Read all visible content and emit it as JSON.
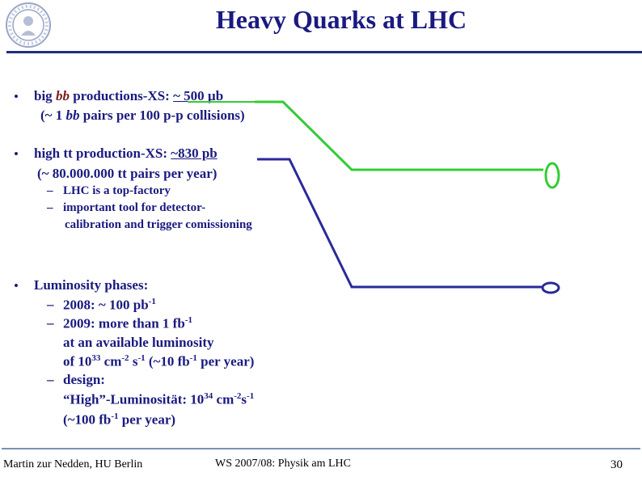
{
  "slide": {
    "title": "Heavy Quarks at LHC",
    "page_number": "30"
  },
  "bullets": {
    "b1_line1_prefix": "big ",
    "b1_line1_bb": "bb",
    "b1_line1_mid": " productions-XS: ",
    "b1_line1_value": "~ 500 µb",
    "b1_line2_prefix": "(~ 1 ",
    "b1_line2_bb": "bb",
    "b1_line2_rest": " pairs per 100 p-p collisions)",
    "b2_line1_prefix": "high ",
    "b2_line1_tt": "tt",
    "b2_line1_mid": " production-XS: ",
    "b2_line1_value": "~830 pb",
    "b2_line2": "(~ 80.000.000 tt pairs per year)",
    "b2_sub1": "LHC is a top-factory",
    "b2_sub2_line1": "important tool for detector-",
    "b2_sub2_line2": "calibration and trigger comissioning",
    "b3_head": "Luminosity phases:",
    "b3_sub1": "2008: ~ 100 pb",
    "b3_sub1_sup": "-1",
    "b3_sub2_line1": "2009: more than 1 fb",
    "b3_sub2_line1_sup": "-1",
    "b3_sub2_line2": "at an available luminosity",
    "b3_sub2_line3_a": "of 10",
    "b3_sub2_line3_a_sup": "33",
    "b3_sub2_line3_b": " cm",
    "b3_sub2_line3_b_sup": "-2",
    "b3_sub2_line3_c": " s",
    "b3_sub2_line3_c_sup": "-1",
    "b3_sub2_line3_d": " (~10 fb",
    "b3_sub2_line3_d_sup": "-1",
    "b3_sub2_line3_e": " per year)",
    "b3_sub3": "design:",
    "b3_sub3_line2_a": "“High”-Luminosität: 10",
    "b3_sub3_line2_a_sup": "34",
    "b3_sub3_line2_b": " cm",
    "b3_sub3_line2_b_sup": "-2",
    "b3_sub3_line2_c": "s",
    "b3_sub3_line2_c_sup": "-1",
    "b3_sub3_line3_a": "(~100 fb",
    "b3_sub3_line3_a_sup": "-1",
    "b3_sub3_line3_b": " per year)",
    "bullet_glyph": "•",
    "dash_glyph": "–"
  },
  "footer": {
    "author": "Martin zur Nedden, HU Berlin",
    "course": "WS 2007/08: Physik am LHC"
  },
  "colors": {
    "text": "#1a1a80",
    "accent_brown": "#7a2020",
    "green_line": "#33cc33",
    "blue_line": "#2a2a9a"
  },
  "icons": {
    "seal": "university-seal-icon"
  }
}
